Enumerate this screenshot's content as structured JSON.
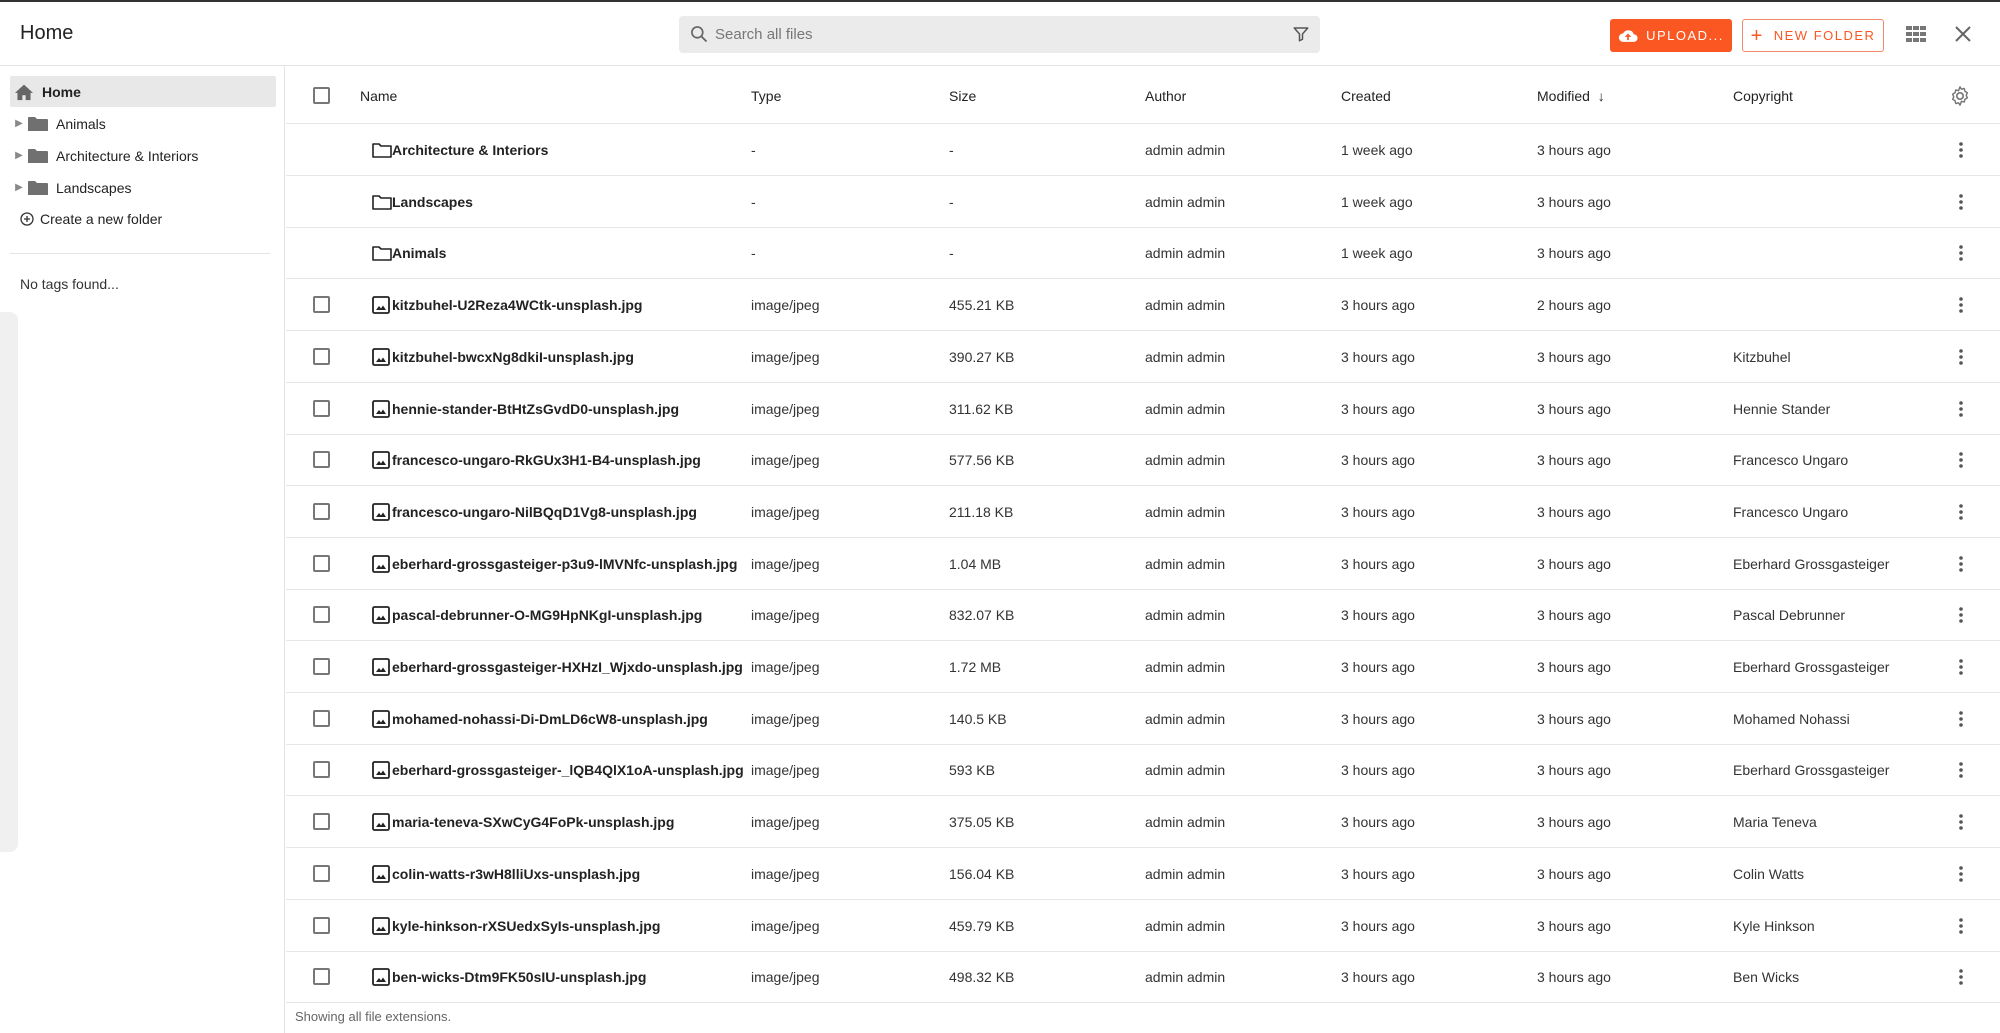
{
  "header": {
    "title": "Home",
    "search_placeholder": "Search all files",
    "upload_label": "UPLOAD...",
    "new_folder_label": "NEW FOLDER"
  },
  "colors": {
    "accent": "#fb5722"
  },
  "sidebar": {
    "home": "Home",
    "folders": [
      {
        "label": "Animals"
      },
      {
        "label": "Architecture & Interiors"
      },
      {
        "label": "Landscapes"
      }
    ],
    "create_folder": "Create a new folder",
    "no_tags": "No tags found..."
  },
  "table": {
    "columns": {
      "name": "Name",
      "type": "Type",
      "size": "Size",
      "author": "Author",
      "created": "Created",
      "modified": "Modified",
      "copyright": "Copyright"
    },
    "sort_indicator": "↓",
    "rows": [
      {
        "kind": "folder",
        "name": "Architecture & Interiors",
        "type": "-",
        "size": "-",
        "author": "admin admin",
        "created": "1 week ago",
        "modified": "3 hours ago",
        "copyright": ""
      },
      {
        "kind": "folder",
        "name": "Landscapes",
        "type": "-",
        "size": "-",
        "author": "admin admin",
        "created": "1 week ago",
        "modified": "3 hours ago",
        "copyright": ""
      },
      {
        "kind": "folder",
        "name": "Animals",
        "type": "-",
        "size": "-",
        "author": "admin admin",
        "created": "1 week ago",
        "modified": "3 hours ago",
        "copyright": ""
      },
      {
        "kind": "file",
        "name": "kitzbuhel-U2Reza4WCtk-unsplash.jpg",
        "type": "image/jpeg",
        "size": "455.21 KB",
        "author": "admin admin",
        "created": "3 hours ago",
        "modified": "2 hours ago",
        "copyright": ""
      },
      {
        "kind": "file",
        "name": "kitzbuhel-bwcxNg8dkiI-unsplash.jpg",
        "type": "image/jpeg",
        "size": "390.27 KB",
        "author": "admin admin",
        "created": "3 hours ago",
        "modified": "3 hours ago",
        "copyright": "Kitzbuhel"
      },
      {
        "kind": "file",
        "name": "hennie-stander-BtHtZsGvdD0-unsplash.jpg",
        "type": "image/jpeg",
        "size": "311.62 KB",
        "author": "admin admin",
        "created": "3 hours ago",
        "modified": "3 hours ago",
        "copyright": "Hennie Stander"
      },
      {
        "kind": "file",
        "name": "francesco-ungaro-RkGUx3H1-B4-unsplash.jpg",
        "type": "image/jpeg",
        "size": "577.56 KB",
        "author": "admin admin",
        "created": "3 hours ago",
        "modified": "3 hours ago",
        "copyright": "Francesco Ungaro"
      },
      {
        "kind": "file",
        "name": "francesco-ungaro-NilBQqD1Vg8-unsplash.jpg",
        "type": "image/jpeg",
        "size": "211.18 KB",
        "author": "admin admin",
        "created": "3 hours ago",
        "modified": "3 hours ago",
        "copyright": "Francesco Ungaro"
      },
      {
        "kind": "file",
        "name": "eberhard-grossgasteiger-p3u9-lMVNfc-unsplash.jpg",
        "type": "image/jpeg",
        "size": "1.04 MB",
        "author": "admin admin",
        "created": "3 hours ago",
        "modified": "3 hours ago",
        "copyright": "Eberhard Grossgasteiger"
      },
      {
        "kind": "file",
        "name": "pascal-debrunner-O-MG9HpNKgI-unsplash.jpg",
        "type": "image/jpeg",
        "size": "832.07 KB",
        "author": "admin admin",
        "created": "3 hours ago",
        "modified": "3 hours ago",
        "copyright": "Pascal Debrunner"
      },
      {
        "kind": "file",
        "name": "eberhard-grossgasteiger-HXHzI_Wjxdo-unsplash.jpg",
        "type": "image/jpeg",
        "size": "1.72 MB",
        "author": "admin admin",
        "created": "3 hours ago",
        "modified": "3 hours ago",
        "copyright": "Eberhard Grossgasteiger"
      },
      {
        "kind": "file",
        "name": "mohamed-nohassi-Di-DmLD6cW8-unsplash.jpg",
        "type": "image/jpeg",
        "size": "140.5 KB",
        "author": "admin admin",
        "created": "3 hours ago",
        "modified": "3 hours ago",
        "copyright": "Mohamed Nohassi"
      },
      {
        "kind": "file",
        "name": "eberhard-grossgasteiger-_lQB4QlX1oA-unsplash.jpg",
        "type": "image/jpeg",
        "size": "593 KB",
        "author": "admin admin",
        "created": "3 hours ago",
        "modified": "3 hours ago",
        "copyright": "Eberhard Grossgasteiger"
      },
      {
        "kind": "file",
        "name": "maria-teneva-SXwCyG4FoPk-unsplash.jpg",
        "type": "image/jpeg",
        "size": "375.05 KB",
        "author": "admin admin",
        "created": "3 hours ago",
        "modified": "3 hours ago",
        "copyright": "Maria Teneva"
      },
      {
        "kind": "file",
        "name": "colin-watts-r3wH8lliUxs-unsplash.jpg",
        "type": "image/jpeg",
        "size": "156.04 KB",
        "author": "admin admin",
        "created": "3 hours ago",
        "modified": "3 hours ago",
        "copyright": "Colin Watts"
      },
      {
        "kind": "file",
        "name": "kyle-hinkson-rXSUedxSyIs-unsplash.jpg",
        "type": "image/jpeg",
        "size": "459.79 KB",
        "author": "admin admin",
        "created": "3 hours ago",
        "modified": "3 hours ago",
        "copyright": "Kyle Hinkson"
      },
      {
        "kind": "file",
        "name": "ben-wicks-Dtm9FK50sIU-unsplash.jpg",
        "type": "image/jpeg",
        "size": "498.32 KB",
        "author": "admin admin",
        "created": "3 hours ago",
        "modified": "3 hours ago",
        "copyright": "Ben Wicks"
      }
    ]
  },
  "footer": "Showing all file extensions."
}
